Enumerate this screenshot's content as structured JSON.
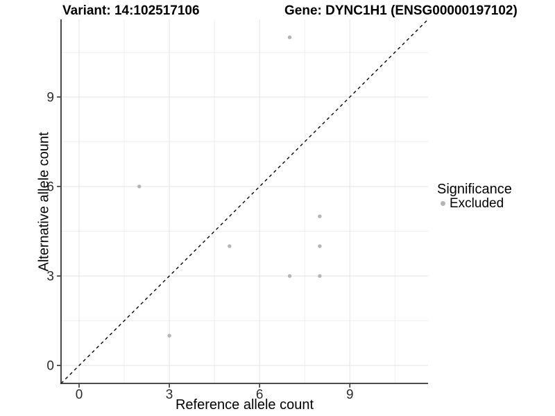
{
  "titles": {
    "left": "Variant: 14:102517106",
    "right": "Gene: DYNC1H1 (ENSG00000197102)"
  },
  "axes": {
    "x_label": "Reference allele count",
    "y_label": "Alternative allele count"
  },
  "legend": {
    "title": "Significance",
    "entries": [
      {
        "label": "Excluded",
        "color": "#b4b4b4"
      }
    ]
  },
  "chart_data": {
    "type": "scatter",
    "title": "Variant: 14:102517106   Gene: DYNC1H1 (ENSG00000197102)",
    "xlabel": "Reference allele count",
    "ylabel": "Alternative allele count",
    "xlim": [
      -0.6,
      11.6
    ],
    "ylim": [
      -0.6,
      11.6
    ],
    "x_major_ticks": [
      0,
      3,
      6,
      9
    ],
    "y_major_ticks": [
      0,
      3,
      6,
      9
    ],
    "x_minor_gridlines": [
      1.5,
      4.5,
      7.5,
      10.5
    ],
    "y_minor_gridlines": [
      1.5,
      4.5,
      7.5,
      10.5
    ],
    "grid": true,
    "legend_position": "right",
    "series": [
      {
        "name": "Excluded",
        "color": "#b4b4b4",
        "points": [
          [
            7,
            11
          ],
          [
            2,
            6
          ],
          [
            8,
            5
          ],
          [
            5,
            4
          ],
          [
            8,
            4
          ],
          [
            7,
            3
          ],
          [
            8,
            3
          ],
          [
            3,
            1
          ]
        ]
      }
    ],
    "reference_line": {
      "kind": "identity y=x",
      "style": "dashed",
      "color": "#000000"
    }
  },
  "colors": {
    "point": "#b4b4b4",
    "grid_major": "#e3e3e3",
    "grid_minor": "#efefef",
    "axis_line": "#333333",
    "dashed_line": "#000000"
  }
}
